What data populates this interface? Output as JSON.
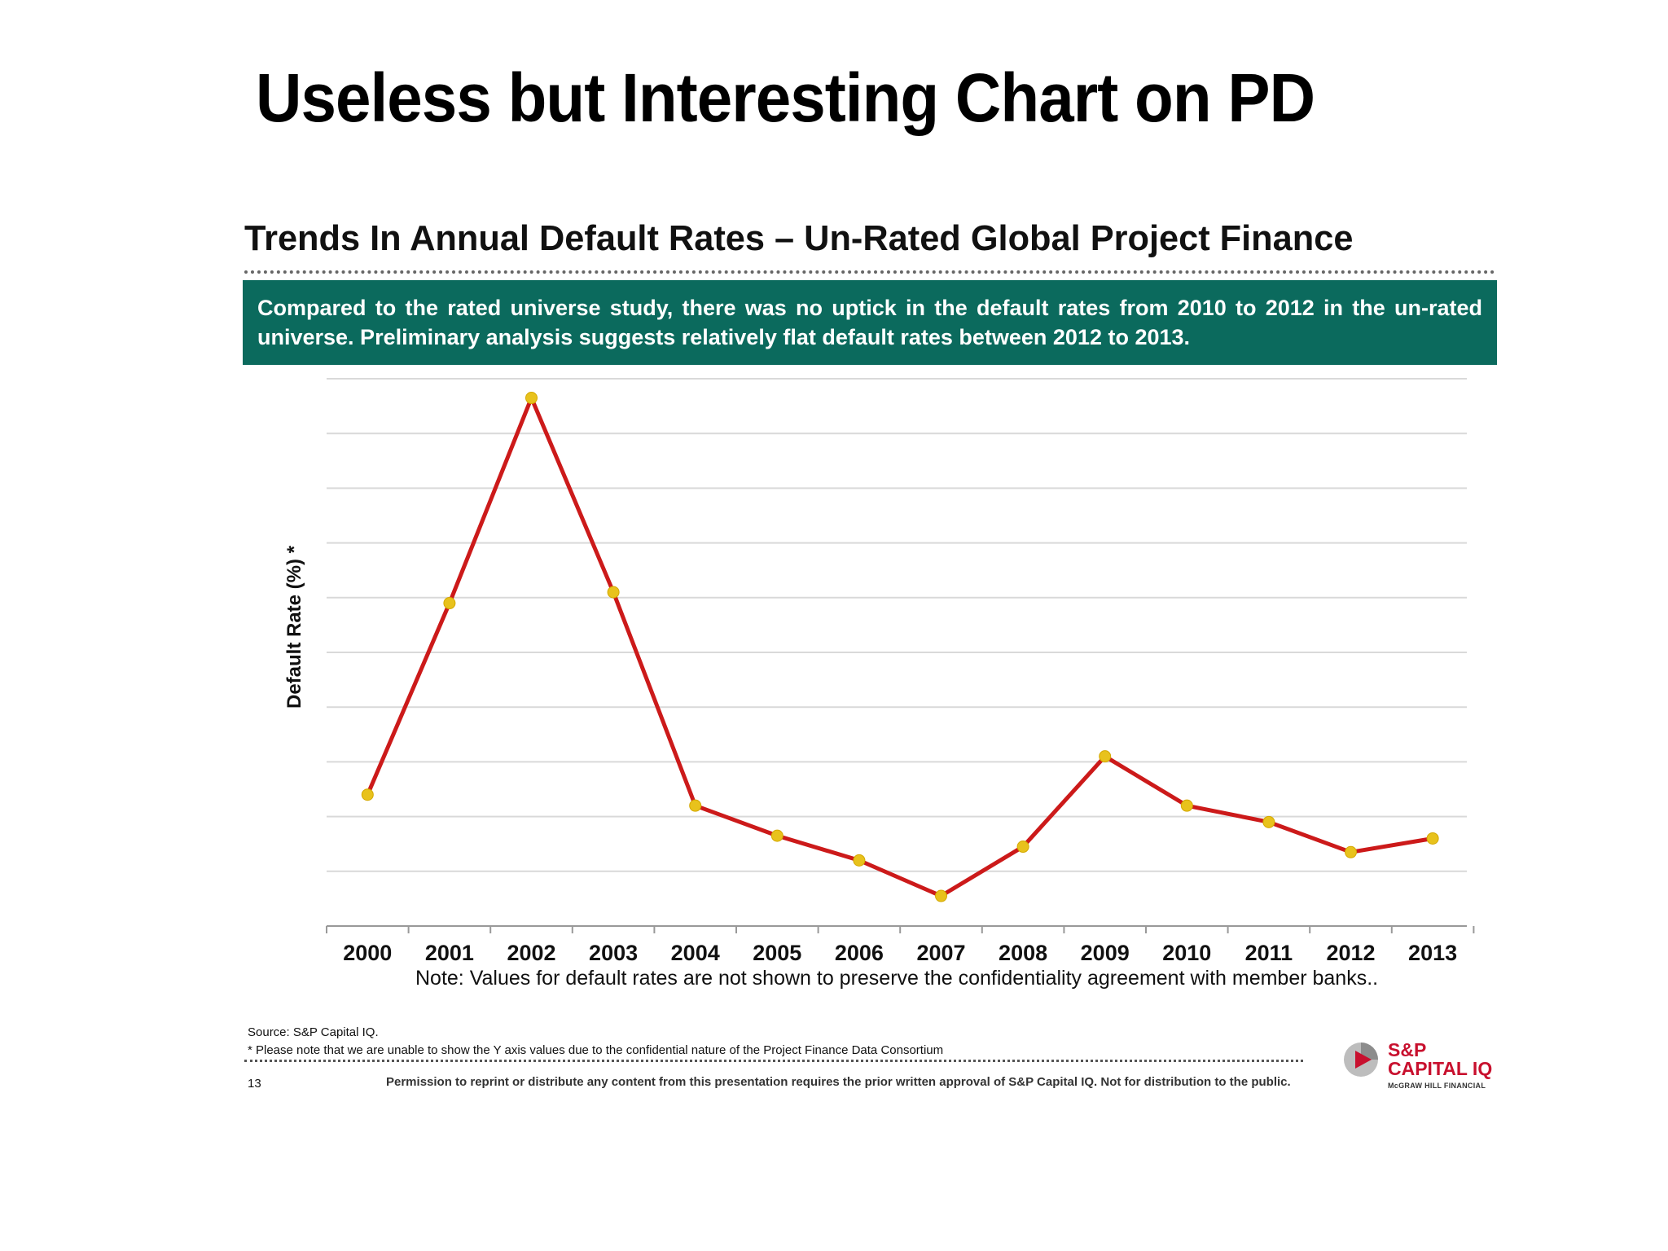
{
  "slide": {
    "title": "Useless but Interesting Chart on PD"
  },
  "panel": {
    "title": "Trends In Annual Default Rates – Un-Rated Global Project Finance",
    "banner_text": "Compared to the rated universe study, there was no uptick in the default rates from 2010 to 2012 in the un-rated universe.  Preliminary analysis suggests relatively flat default rates between 2012 to 2013.",
    "banner_color": "#0b6a5d"
  },
  "chart_data": {
    "type": "line",
    "x": [
      "2000",
      "2001",
      "2002",
      "2003",
      "2004",
      "2005",
      "2006",
      "2007",
      "2008",
      "2009",
      "2010",
      "2011",
      "2012",
      "2013"
    ],
    "values": [
      2.4,
      5.9,
      9.65,
      6.1,
      2.2,
      1.65,
      1.2,
      0.55,
      1.45,
      3.1,
      2.2,
      1.9,
      1.35,
      1.6
    ],
    "ylabel": "Default Rate (%) *",
    "ylim": [
      0,
      10
    ],
    "y_gridlines": 10,
    "y_tick_labels_shown": false,
    "grid": true,
    "line_color": "#cc1a1a",
    "marker_color": "#e8c21c",
    "note": "Note: Values for default rates are not shown to preserve the confidentiality agreement with member banks.."
  },
  "footer": {
    "source": "Source: S&P Capital IQ.",
    "footnote": "* Please note that we are unable to show the Y axis values due to the confidential nature of the Project Finance Data Consortium",
    "page_number": "13",
    "permission": "Permission to reprint or distribute any content from this presentation requires the prior written approval of S&P Capital IQ. Not for distribution to the public."
  },
  "logo": {
    "line1": "S&P",
    "line2": "CAPITAL IQ",
    "line3": "McGRAW HILL FINANCIAL",
    "brand_color": "#c8102e"
  }
}
